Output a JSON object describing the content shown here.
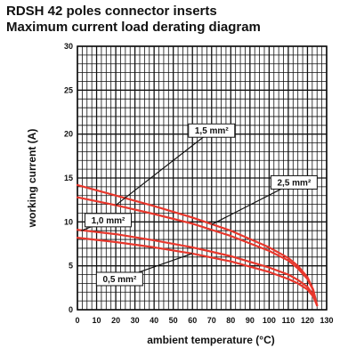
{
  "chart_data": {
    "type": "line",
    "title": "RDSH 42 poles connector inserts",
    "subtitle": "Maximum current load derating diagram",
    "xlabel": "ambient temperature (°C)",
    "ylabel": "working current (A)",
    "xlim": [
      0,
      130
    ],
    "ylim": [
      0,
      30
    ],
    "x_ticks": [
      0,
      10,
      20,
      30,
      40,
      50,
      60,
      70,
      80,
      90,
      100,
      110,
      120,
      130
    ],
    "y_ticks": [
      0,
      5,
      10,
      15,
      20,
      25,
      30
    ],
    "grid": true,
    "line_color": "#e8372c",
    "series": [
      {
        "name": "2,5 mm²",
        "x": [
          0,
          20,
          40,
          60,
          80,
          100,
          110,
          115,
          120,
          123,
          125
        ],
        "y": [
          14.2,
          13.0,
          11.8,
          10.5,
          9.0,
          7.1,
          5.9,
          5.0,
          3.7,
          2.3,
          0.5
        ]
      },
      {
        "name": "1,5 mm²",
        "x": [
          0,
          20,
          40,
          60,
          80,
          100,
          110,
          115,
          120,
          123,
          125
        ],
        "y": [
          12.8,
          11.9,
          10.9,
          9.8,
          8.4,
          6.7,
          5.6,
          4.7,
          3.5,
          2.2,
          0.5
        ]
      },
      {
        "name": "1,0 mm²",
        "x": [
          0,
          20,
          40,
          60,
          80,
          100,
          110,
          115,
          120,
          123,
          125
        ],
        "y": [
          9.1,
          8.6,
          7.9,
          7.1,
          6.1,
          4.8,
          4.0,
          3.4,
          2.6,
          1.7,
          0.5
        ]
      },
      {
        "name": "0,5 mm²",
        "x": [
          0,
          20,
          40,
          60,
          80,
          100,
          110,
          115,
          120,
          123,
          125
        ],
        "y": [
          8.2,
          7.7,
          7.1,
          6.4,
          5.5,
          4.3,
          3.5,
          3.0,
          2.3,
          1.5,
          0.5
        ]
      }
    ],
    "annotations": [
      {
        "text": "1,5 mm²",
        "label_x": 70,
        "label_y": 20.4,
        "target_x": 20,
        "target_y": 11.9
      },
      {
        "text": "2,5 mm²",
        "label_x": 113,
        "label_y": 14.5,
        "target_x": 70,
        "target_y": 9.7
      },
      {
        "text": "1,0 mm²",
        "label_x": 16,
        "label_y": 10.2,
        "target_x": 2,
        "target_y": 9.0
      },
      {
        "text": "0,5 mm²",
        "label_x": 22,
        "label_y": 3.5,
        "target_x": 60,
        "target_y": 6.4
      }
    ]
  }
}
